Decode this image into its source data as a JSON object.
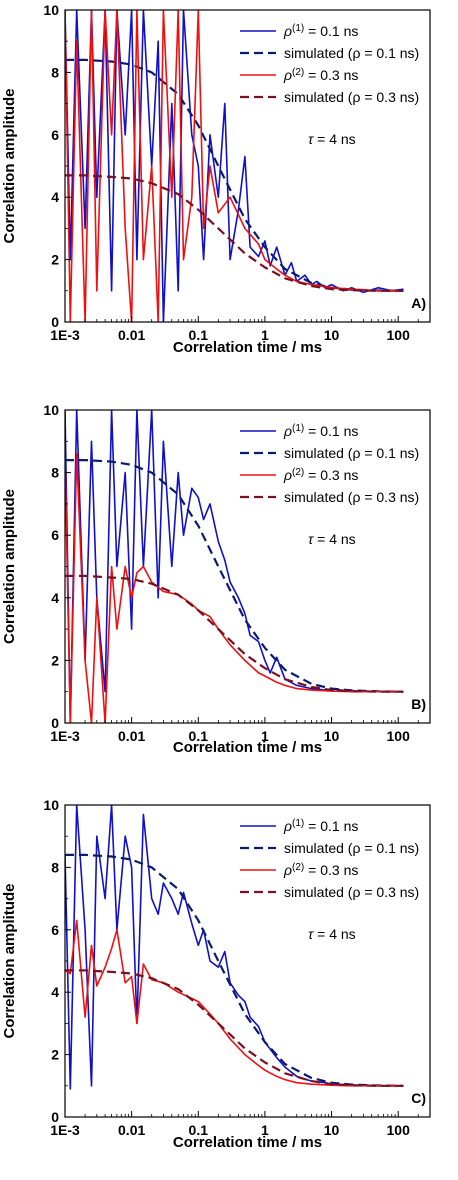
{
  "colors": {
    "measured_1": "#1010c8",
    "simulated_1": "#0a1a6e",
    "measured_2": "#ee1010",
    "simulated_2": "#7a1020"
  },
  "chart_data": [
    {
      "type": "line",
      "panel": "A)",
      "xlabel": "Correlation time / ms",
      "ylabel": "Correlation amplitude",
      "xscale": "log",
      "xlim": [
        0.001,
        300
      ],
      "ylim": [
        0,
        10
      ],
      "xticks": [
        "1E-3",
        "0.01",
        "0.1",
        "1",
        "10",
        "100"
      ],
      "yticks": [
        "0",
        "2",
        "4",
        "6",
        "8",
        "10"
      ],
      "annotation": "τ = 4 ns",
      "legend": [
        "ρ(1) = 0.1 ns",
        "simulated (ρ = 0.1 ns)",
        "ρ(2) = 0.3 ns",
        "simulated (ρ = 0.3 ns)"
      ],
      "legend_position": "top-right",
      "series": [
        {
          "name": "ρ(1) = 0.1 ns",
          "style": "solid",
          "x": [
            0.001,
            0.0012,
            0.0015,
            0.002,
            0.0025,
            0.003,
            0.004,
            0.005,
            0.006,
            0.008,
            0.01,
            0.012,
            0.015,
            0.02,
            0.025,
            0.03,
            0.04,
            0.05,
            0.06,
            0.08,
            0.1,
            0.12,
            0.15,
            0.2,
            0.25,
            0.3,
            0.4,
            0.5,
            0.6,
            0.8,
            1,
            1.2,
            1.5,
            2,
            2.5,
            3,
            4,
            5,
            6,
            8,
            10,
            15,
            20,
            30,
            50,
            80,
            120
          ],
          "y": [
            10,
            2,
            10,
            3,
            10,
            4,
            10,
            1,
            10,
            6,
            10,
            2,
            10,
            5,
            9,
            0,
            7,
            1,
            10,
            6,
            5,
            2,
            6,
            4,
            7,
            2,
            3.6,
            5.3,
            2.4,
            2.1,
            2.6,
            1.8,
            2.4,
            1.5,
            1.9,
            1.3,
            1.5,
            1.2,
            1.3,
            1.1,
            1.2,
            1.0,
            1.1,
            0.95,
            1.1,
            1.0,
            1.05
          ]
        },
        {
          "name": "simulated (ρ = 0.1 ns)",
          "style": "dashed",
          "x": [
            0.001,
            0.002,
            0.005,
            0.01,
            0.02,
            0.05,
            0.1,
            0.2,
            0.5,
            1,
            2,
            5,
            10,
            20,
            50,
            120
          ],
          "y": [
            8.4,
            8.4,
            8.35,
            8.25,
            8.0,
            7.3,
            6.3,
            5.0,
            3.3,
            2.4,
            1.7,
            1.25,
            1.1,
            1.04,
            1.01,
            1.0
          ]
        },
        {
          "name": "ρ(2) = 0.3 ns",
          "style": "solid",
          "x": [
            0.001,
            0.0012,
            0.0015,
            0.002,
            0.0025,
            0.003,
            0.004,
            0.005,
            0.006,
            0.008,
            0.01,
            0.012,
            0.015,
            0.02,
            0.025,
            0.03,
            0.04,
            0.05,
            0.06,
            0.08,
            0.1,
            0.12,
            0.15,
            0.2,
            0.3,
            0.5,
            0.8,
            1,
            1.5,
            2,
            3,
            5,
            10,
            20,
            50,
            120
          ],
          "y": [
            10,
            0,
            9,
            0,
            10,
            1,
            10,
            6,
            10,
            3,
            0,
            10,
            2,
            5,
            0,
            10,
            4,
            10,
            2,
            4,
            10,
            3,
            5,
            3.5,
            4,
            3,
            2.5,
            2.0,
            1.7,
            1.5,
            1.3,
            1.2,
            1.1,
            1.05,
            1.0,
            1.0
          ]
        },
        {
          "name": "simulated (ρ = 0.3 ns)",
          "style": "dashed",
          "x": [
            0.001,
            0.002,
            0.005,
            0.01,
            0.02,
            0.05,
            0.1,
            0.2,
            0.5,
            1,
            2,
            5,
            10,
            20,
            50,
            120
          ],
          "y": [
            4.7,
            4.7,
            4.65,
            4.6,
            4.45,
            4.1,
            3.6,
            3.0,
            2.2,
            1.75,
            1.4,
            1.15,
            1.05,
            1.02,
            1.0,
            1.0
          ]
        }
      ]
    },
    {
      "type": "line",
      "panel": "B)",
      "xlabel": "Correlation time / ms",
      "ylabel": "Correlation amplitude",
      "xscale": "log",
      "xlim": [
        0.001,
        300
      ],
      "ylim": [
        0,
        10
      ],
      "xticks": [
        "1E-3",
        "0.01",
        "0.1",
        "1",
        "10",
        "100"
      ],
      "yticks": [
        "0",
        "2",
        "4",
        "6",
        "8",
        "10"
      ],
      "annotation": "τ = 4 ns",
      "legend": [
        "ρ(1) = 0.1 ns",
        "simulated (ρ = 0.1 ns)",
        "ρ(2) = 0.3 ns",
        "simulated (ρ = 0.3 ns)"
      ],
      "legend_position": "top-right",
      "series": [
        {
          "name": "ρ(1) = 0.1 ns",
          "style": "solid",
          "x": [
            0.001,
            0.0012,
            0.0015,
            0.002,
            0.0025,
            0.003,
            0.004,
            0.005,
            0.006,
            0.008,
            0.01,
            0.012,
            0.015,
            0.02,
            0.025,
            0.03,
            0.04,
            0.05,
            0.06,
            0.08,
            0.1,
            0.12,
            0.15,
            0.2,
            0.25,
            0.3,
            0.4,
            0.5,
            0.6,
            0.8,
            1,
            1.2,
            1.5,
            2,
            3,
            5,
            8,
            10,
            20,
            50,
            120
          ],
          "y": [
            10,
            0,
            10,
            2,
            9,
            4,
            1,
            10,
            5,
            8,
            3,
            10,
            5,
            10,
            4,
            9,
            5,
            8,
            6,
            7.5,
            7.2,
            6.5,
            7,
            5.8,
            5.2,
            4.5,
            4.0,
            3.5,
            2.8,
            2.6,
            2.0,
            1.6,
            2.1,
            1.4,
            1.2,
            1.1,
            1.05,
            1.1,
            1.0,
            1.0,
            1.0
          ]
        },
        {
          "name": "simulated (ρ = 0.1 ns)",
          "style": "dashed",
          "x": [
            0.001,
            0.002,
            0.005,
            0.01,
            0.02,
            0.05,
            0.1,
            0.2,
            0.5,
            1,
            2,
            5,
            10,
            20,
            50,
            120
          ],
          "y": [
            8.4,
            8.4,
            8.35,
            8.25,
            8.0,
            7.3,
            6.3,
            5.0,
            3.3,
            2.4,
            1.7,
            1.25,
            1.1,
            1.04,
            1.01,
            1.0
          ]
        },
        {
          "name": "ρ(2) = 0.3 ns",
          "style": "solid",
          "x": [
            0.001,
            0.0012,
            0.0015,
            0.002,
            0.0025,
            0.003,
            0.004,
            0.005,
            0.006,
            0.008,
            0.01,
            0.012,
            0.015,
            0.02,
            0.03,
            0.05,
            0.08,
            0.1,
            0.15,
            0.2,
            0.3,
            0.5,
            0.8,
            1,
            1.5,
            2,
            3,
            5,
            10,
            20,
            50,
            120
          ],
          "y": [
            8.5,
            0,
            8.6,
            2,
            0,
            4,
            0,
            5,
            3,
            5,
            4,
            4.8,
            5,
            4.5,
            4.2,
            4.1,
            3.8,
            3.6,
            3.4,
            3.0,
            2.5,
            2.0,
            1.6,
            1.5,
            1.3,
            1.2,
            1.1,
            1.05,
            1.02,
            1.0,
            1.0,
            1.0
          ]
        },
        {
          "name": "simulated (ρ = 0.3 ns)",
          "style": "dashed",
          "x": [
            0.001,
            0.002,
            0.005,
            0.01,
            0.02,
            0.05,
            0.1,
            0.2,
            0.5,
            1,
            2,
            5,
            10,
            20,
            50,
            120
          ],
          "y": [
            4.7,
            4.7,
            4.65,
            4.6,
            4.45,
            4.1,
            3.6,
            3.0,
            2.2,
            1.75,
            1.4,
            1.15,
            1.05,
            1.02,
            1.0,
            1.0
          ]
        }
      ]
    },
    {
      "type": "line",
      "panel": "C)",
      "xlabel": "Correlation time / ms",
      "ylabel": "Correlation amplitude",
      "xscale": "log",
      "xlim": [
        0.001,
        300
      ],
      "ylim": [
        0,
        10
      ],
      "xticks": [
        "1E-3",
        "0.01",
        "0.1",
        "1",
        "10",
        "100"
      ],
      "yticks": [
        "0",
        "2",
        "4",
        "6",
        "8",
        "10"
      ],
      "annotation": "τ = 4 ns",
      "legend": [
        "ρ(1) = 0.1 ns",
        "simulated (ρ = 0.1 ns)",
        "ρ(2) = 0.3 ns",
        "simulated (ρ = 0.3 ns)"
      ],
      "legend_position": "top-right",
      "series": [
        {
          "name": "ρ(1) = 0.1 ns",
          "style": "solid",
          "x": [
            0.001,
            0.0012,
            0.0015,
            0.002,
            0.0025,
            0.003,
            0.004,
            0.005,
            0.006,
            0.008,
            0.01,
            0.012,
            0.015,
            0.02,
            0.025,
            0.03,
            0.04,
            0.05,
            0.06,
            0.08,
            0.1,
            0.12,
            0.15,
            0.2,
            0.25,
            0.3,
            0.4,
            0.5,
            0.6,
            0.8,
            1,
            1.5,
            2,
            3,
            5,
            8,
            10,
            20,
            50,
            120
          ],
          "y": [
            8.4,
            0.9,
            10,
            6,
            1,
            9,
            7,
            10,
            6,
            9,
            8,
            3,
            9.7,
            7,
            6.5,
            7.5,
            7,
            6.5,
            7.2,
            6.2,
            5.5,
            6.0,
            5.0,
            4.8,
            5.3,
            4.3,
            3.9,
            3.7,
            3.2,
            2.9,
            2.4,
            1.9,
            1.6,
            1.3,
            1.15,
            1.1,
            1.05,
            1.02,
            1.0,
            1.0
          ]
        },
        {
          "name": "simulated (ρ = 0.1 ns)",
          "style": "dashed",
          "x": [
            0.001,
            0.002,
            0.005,
            0.01,
            0.02,
            0.05,
            0.1,
            0.2,
            0.5,
            1,
            2,
            5,
            10,
            20,
            50,
            120
          ],
          "y": [
            8.4,
            8.4,
            8.35,
            8.25,
            8.0,
            7.3,
            6.3,
            5.0,
            3.3,
            2.4,
            1.7,
            1.25,
            1.1,
            1.04,
            1.01,
            1.0
          ]
        },
        {
          "name": "ρ(2) = 0.3 ns",
          "style": "solid",
          "x": [
            0.001,
            0.0012,
            0.0015,
            0.002,
            0.0025,
            0.003,
            0.004,
            0.005,
            0.006,
            0.008,
            0.01,
            0.012,
            0.015,
            0.02,
            0.03,
            0.05,
            0.08,
            0.1,
            0.15,
            0.2,
            0.3,
            0.5,
            0.8,
            1,
            1.5,
            2,
            3,
            5,
            10,
            20,
            50,
            120
          ],
          "y": [
            4.7,
            4.6,
            6.3,
            3.2,
            5.5,
            4.2,
            4.8,
            5.4,
            6.0,
            4.3,
            4.5,
            3.0,
            4.9,
            4.4,
            4.3,
            4.0,
            3.8,
            3.7,
            3.3,
            3.0,
            2.5,
            2.0,
            1.65,
            1.5,
            1.3,
            1.2,
            1.1,
            1.05,
            1.02,
            1.0,
            1.0,
            1.0
          ]
        },
        {
          "name": "simulated (ρ = 0.3 ns)",
          "style": "dashed",
          "x": [
            0.001,
            0.002,
            0.005,
            0.01,
            0.02,
            0.05,
            0.1,
            0.2,
            0.5,
            1,
            2,
            5,
            10,
            20,
            50,
            120
          ],
          "y": [
            4.7,
            4.7,
            4.65,
            4.6,
            4.45,
            4.1,
            3.6,
            3.0,
            2.2,
            1.75,
            1.4,
            1.15,
            1.05,
            1.02,
            1.0,
            1.0
          ]
        }
      ]
    }
  ]
}
